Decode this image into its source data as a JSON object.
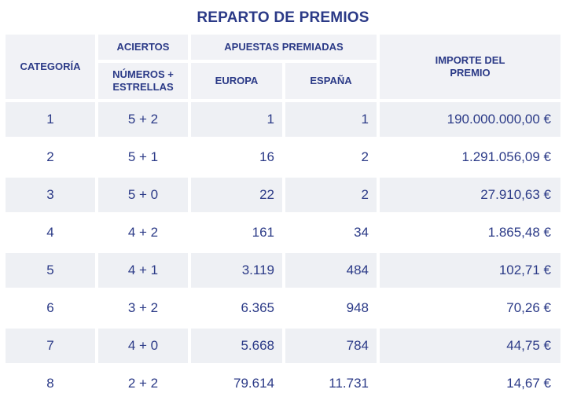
{
  "title": "REPARTO DE PREMIOS",
  "headers": {
    "categoria": "CATEGORÍA",
    "aciertos": "ACIERTOS",
    "numeros_estrellas": "NÚMEROS + ESTRELLAS",
    "apuestas_premiadas": "APUESTAS PREMIADAS",
    "europa": "EUROPA",
    "espana": "ESPAÑA",
    "importe": "IMPORTE DEL PREMIO"
  },
  "rows": [
    {
      "categoria": "1",
      "aciertos": "5 + 2",
      "europa": "1",
      "espana": "1",
      "importe": "190.000.000,00 €"
    },
    {
      "categoria": "2",
      "aciertos": "5 + 1",
      "europa": "16",
      "espana": "2",
      "importe": "1.291.056,09 €"
    },
    {
      "categoria": "3",
      "aciertos": "5 + 0",
      "europa": "22",
      "espana": "2",
      "importe": "27.910,63 €"
    },
    {
      "categoria": "4",
      "aciertos": "4 + 2",
      "europa": "161",
      "espana": "34",
      "importe": "1.865,48 €"
    },
    {
      "categoria": "5",
      "aciertos": "4 + 1",
      "europa": "3.119",
      "espana": "484",
      "importe": "102,71 €"
    },
    {
      "categoria": "6",
      "aciertos": "3 + 2",
      "europa": "6.365",
      "espana": "948",
      "importe": "70,26 €"
    },
    {
      "categoria": "7",
      "aciertos": "4 + 0",
      "europa": "5.668",
      "espana": "784",
      "importe": "44,75 €"
    },
    {
      "categoria": "8",
      "aciertos": "2 + 2",
      "europa": "79.614",
      "espana": "11.731",
      "importe": "14,67 €"
    }
  ]
}
